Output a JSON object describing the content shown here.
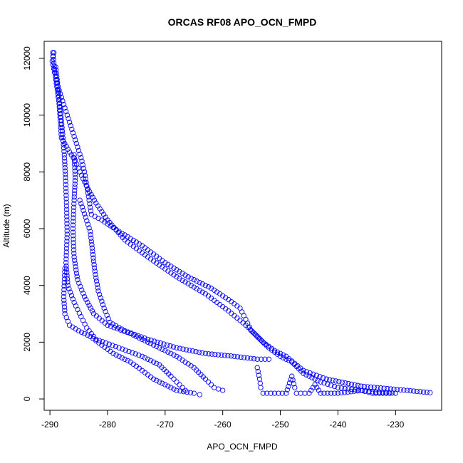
{
  "chart_data": {
    "type": "scatter",
    "title": "ORCAS RF08 APO_OCN_FMPD",
    "xlabel": "APO_OCN_FMPD",
    "ylabel": "Altitude (m)",
    "xlim": [
      -291,
      -222
    ],
    "ylim": [
      -400,
      12600
    ],
    "x_ticks": [
      -290,
      -280,
      -270,
      -260,
      -250,
      -240,
      -230
    ],
    "y_ticks": [
      0,
      2000,
      4000,
      6000,
      8000,
      10000,
      12000
    ],
    "marker": "open-circle",
    "color": "#0000ff",
    "series": [
      {
        "points": [
          [
            -289.3,
            12200
          ],
          [
            -289.6,
            11900
          ],
          [
            -289.2,
            11500
          ],
          [
            -288.6,
            11000
          ],
          [
            -287.8,
            10500
          ],
          [
            -287.0,
            10000
          ],
          [
            -286.2,
            9500
          ],
          [
            -285.4,
            9000
          ],
          [
            -284.6,
            8500
          ],
          [
            -284.0,
            8000
          ],
          [
            -283.6,
            7500
          ],
          [
            -283.2,
            7000
          ],
          [
            -282.8,
            6500
          ],
          [
            -281.0,
            6300
          ],
          [
            -278.0,
            5900
          ],
          [
            -274.0,
            5400
          ],
          [
            -270.0,
            4800
          ],
          [
            -266.0,
            4300
          ],
          [
            -262.0,
            3900
          ],
          [
            -259.0,
            3500
          ],
          [
            -257.0,
            3200
          ],
          [
            -256.0,
            2800
          ],
          [
            -255.0,
            2400
          ],
          [
            -253.0,
            2000
          ],
          [
            -251.0,
            1700
          ],
          [
            -249.0,
            1500
          ],
          [
            -246.0,
            1000
          ],
          [
            -242.0,
            700
          ],
          [
            -236.0,
            450
          ],
          [
            -228.0,
            300
          ],
          [
            -224.0,
            220
          ]
        ]
      },
      {
        "points": [
          [
            -289.5,
            12200
          ],
          [
            -289.2,
            11600
          ],
          [
            -288.8,
            11000
          ],
          [
            -288.4,
            10400
          ],
          [
            -288.2,
            9800
          ],
          [
            -288.0,
            9200
          ],
          [
            -286.6,
            8700
          ],
          [
            -285.6,
            8400
          ],
          [
            -284.8,
            8000
          ],
          [
            -283.4,
            7400
          ],
          [
            -282.0,
            6900
          ],
          [
            -280.0,
            6300
          ],
          [
            -277.0,
            5600
          ],
          [
            -273.0,
            5000
          ],
          [
            -268.0,
            4300
          ],
          [
            -263.0,
            3700
          ],
          [
            -259.0,
            3100
          ],
          [
            -256.0,
            2600
          ],
          [
            -254.0,
            2200
          ],
          [
            -252.0,
            1800
          ],
          [
            -250.0,
            1500
          ],
          [
            -248.0,
            1300
          ],
          [
            -246.0,
            900
          ],
          [
            -243.0,
            600
          ],
          [
            -240.0,
            400
          ],
          [
            -234.0,
            250
          ],
          [
            -230.0,
            200
          ]
        ]
      },
      {
        "points": [
          [
            -289.0,
            11700
          ],
          [
            -288.5,
            10800
          ],
          [
            -288.0,
            9800
          ],
          [
            -287.5,
            8600
          ],
          [
            -287.3,
            7800
          ],
          [
            -287.1,
            6800
          ],
          [
            -287.0,
            5800
          ],
          [
            -287.2,
            4800
          ],
          [
            -286.9,
            4000
          ],
          [
            -285.8,
            3400
          ],
          [
            -284.6,
            2900
          ],
          [
            -283.6,
            2500
          ],
          [
            -282.0,
            2100
          ],
          [
            -278.0,
            1800
          ],
          [
            -274.0,
            1500
          ],
          [
            -271.0,
            1200
          ],
          [
            -269.0,
            800
          ],
          [
            -267.5,
            500
          ],
          [
            -266.5,
            300
          ]
        ]
      },
      {
        "points": [
          [
            -285.8,
            8600
          ],
          [
            -285.6,
            7800
          ],
          [
            -285.8,
            7000
          ],
          [
            -286.0,
            6000
          ],
          [
            -285.8,
            5000
          ],
          [
            -285.2,
            4200
          ],
          [
            -284.0,
            3600
          ],
          [
            -282.4,
            3000
          ],
          [
            -280.0,
            2600
          ],
          [
            -276.0,
            2300
          ],
          [
            -272.0,
            1900
          ],
          [
            -268.0,
            1500
          ],
          [
            -265.0,
            1100
          ],
          [
            -263.0,
            700
          ],
          [
            -261.5,
            400
          ],
          [
            -260.0,
            300
          ]
        ]
      },
      {
        "points": [
          [
            -284.8,
            7000
          ],
          [
            -283.8,
            6400
          ],
          [
            -283.0,
            5900
          ],
          [
            -282.6,
            5200
          ],
          [
            -282.2,
            4500
          ],
          [
            -281.6,
            3800
          ],
          [
            -280.6,
            3200
          ],
          [
            -279.6,
            2700
          ],
          [
            -277.0,
            2400
          ],
          [
            -273.0,
            2100
          ],
          [
            -268.0,
            1800
          ],
          [
            -263.0,
            1600
          ],
          [
            -258.0,
            1500
          ],
          [
            -254.0,
            1400
          ],
          [
            -252.0,
            1400
          ]
        ]
      },
      {
        "points": [
          [
            -287.4,
            4600
          ],
          [
            -287.6,
            3600
          ],
          [
            -287.4,
            3000
          ],
          [
            -286.6,
            2600
          ],
          [
            -285.0,
            2400
          ],
          [
            -283.0,
            2200
          ],
          [
            -281.0,
            1900
          ],
          [
            -279.0,
            1600
          ],
          [
            -276.0,
            1300
          ],
          [
            -274.0,
            1000
          ],
          [
            -272.0,
            700
          ],
          [
            -270.0,
            500
          ],
          [
            -268.0,
            300
          ],
          [
            -265.0,
            200
          ],
          [
            -264.0,
            150
          ]
        ]
      },
      {
        "points": [
          [
            -254.0,
            1100
          ],
          [
            -253.6,
            700
          ],
          [
            -253.4,
            400
          ],
          [
            -253.0,
            200
          ],
          [
            -251.0,
            200
          ],
          [
            -249.0,
            200
          ],
          [
            -248.0,
            800
          ],
          [
            -247.5,
            400
          ],
          [
            -247.2,
            200
          ],
          [
            -245.0,
            200
          ],
          [
            -244.0,
            500
          ],
          [
            -243.0,
            200
          ],
          [
            -240.0,
            200
          ],
          [
            -236.0,
            300
          ],
          [
            -234.0,
            200
          ],
          [
            -231.0,
            200
          ]
        ]
      }
    ]
  }
}
